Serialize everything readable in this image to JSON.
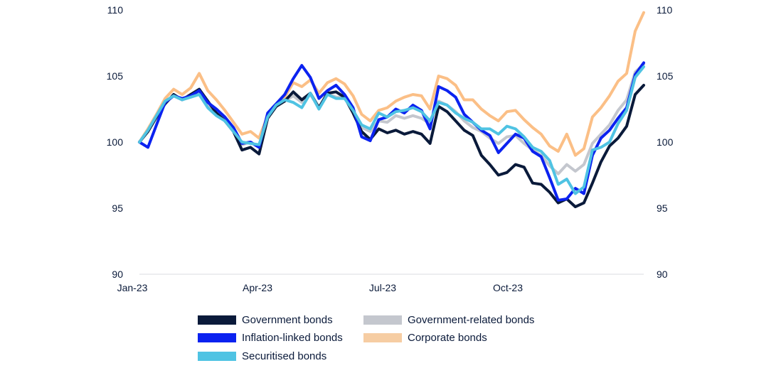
{
  "chart_data": {
    "type": "line",
    "title": "",
    "xlabel": "",
    "ylabel": "",
    "ylim": [
      90,
      110
    ],
    "yticks": [
      90,
      95,
      100,
      105,
      110
    ],
    "ytick_labels": [
      "90",
      "95",
      "100",
      "105",
      "110"
    ],
    "y_axis_sides": [
      "left",
      "right"
    ],
    "x_tick_labels": [
      "Jan-23",
      "Apr-23",
      "Jul-23",
      "Oct-23"
    ],
    "x_tick_positions_month_index": [
      0,
      3,
      6,
      9
    ],
    "x_range_months": [
      0,
      11.95
    ],
    "grid": false,
    "baseline_value": 90,
    "legend_placement": "bottom",
    "series": [
      {
        "name": "Government bonds",
        "color": "#0a1a3a",
        "values": [
          100.0,
          100.8,
          101.9,
          102.9,
          103.6,
          103.2,
          103.6,
          104.0,
          103.1,
          102.2,
          101.6,
          100.8,
          99.4,
          99.6,
          99.1,
          101.8,
          102.7,
          103.1,
          103.8,
          103.2,
          103.7,
          102.6,
          103.7,
          103.8,
          103.4,
          102.2,
          100.8,
          100.2,
          101.0,
          100.7,
          100.9,
          100.6,
          100.8,
          100.6,
          99.9,
          102.7,
          102.3,
          101.6,
          100.9,
          100.5,
          99.0,
          98.3,
          97.5,
          97.7,
          98.3,
          98.1,
          96.9,
          96.8,
          96.2,
          95.4,
          95.7,
          95.1,
          95.4,
          96.9,
          98.5,
          99.7,
          100.3,
          101.2,
          103.6,
          104.3
        ]
      },
      {
        "name": "Inflation-linked bonds",
        "color": "#0b22f0",
        "values": [
          100.0,
          99.6,
          101.3,
          103.0,
          103.5,
          103.3,
          103.5,
          103.9,
          103.0,
          102.5,
          101.9,
          101.1,
          99.9,
          100.0,
          99.6,
          102.2,
          102.9,
          103.6,
          104.8,
          105.8,
          104.9,
          103.3,
          103.9,
          104.3,
          103.6,
          102.6,
          100.4,
          100.1,
          101.7,
          101.9,
          102.5,
          102.2,
          102.8,
          102.4,
          101.0,
          104.2,
          103.9,
          103.4,
          102.1,
          101.5,
          100.9,
          100.5,
          99.2,
          99.9,
          100.6,
          100.3,
          99.3,
          98.9,
          97.3,
          95.6,
          95.7,
          96.5,
          96.1,
          99.0,
          100.3,
          100.9,
          101.8,
          102.6,
          105.1,
          106.0
        ]
      },
      {
        "name": "Securitised bonds",
        "color": "#4fc3e3",
        "values": [
          100.0,
          100.9,
          102.0,
          103.1,
          103.5,
          103.2,
          103.4,
          103.6,
          102.6,
          102.0,
          101.6,
          100.8,
          100.0,
          99.9,
          99.8,
          101.9,
          102.8,
          103.2,
          103.0,
          102.6,
          103.7,
          102.5,
          103.6,
          103.3,
          103.3,
          102.4,
          101.3,
          101.0,
          102.2,
          101.9,
          102.3,
          102.4,
          102.6,
          102.3,
          101.6,
          103.0,
          102.8,
          102.2,
          101.8,
          101.5,
          101.0,
          101.0,
          100.6,
          101.2,
          101.0,
          100.4,
          99.6,
          99.3,
          98.6,
          96.8,
          97.2,
          96.1,
          96.6,
          99.4,
          99.6,
          100.0,
          101.4,
          102.4,
          104.9,
          105.7
        ]
      },
      {
        "name": "Government-related bonds",
        "color": "#c4c7ce",
        "values": [
          100.0,
          100.9,
          102.0,
          103.0,
          103.5,
          103.2,
          103.5,
          103.8,
          102.8,
          102.1,
          101.7,
          100.9,
          99.8,
          100.0,
          99.6,
          101.9,
          102.8,
          103.1,
          103.5,
          103.0,
          103.6,
          102.6,
          103.7,
          103.4,
          103.4,
          102.3,
          101.1,
          100.8,
          101.6,
          101.5,
          102.0,
          101.8,
          102.0,
          101.8,
          101.4,
          103.1,
          102.8,
          102.3,
          101.6,
          101.1,
          100.8,
          100.3,
          99.9,
          100.4,
          100.5,
          99.9,
          99.4,
          99.0,
          98.2,
          97.6,
          98.3,
          97.8,
          98.3,
          99.9,
          100.6,
          101.3,
          102.4,
          103.2,
          105.3,
          105.9
        ]
      },
      {
        "name": "Corporate bonds",
        "color": "#fbbf86",
        "values": [
          100.0,
          101.0,
          102.1,
          103.3,
          104.0,
          103.6,
          104.1,
          105.2,
          103.9,
          103.2,
          102.4,
          101.5,
          100.6,
          100.8,
          100.3,
          102.0,
          102.8,
          103.4,
          104.5,
          104.2,
          104.7,
          103.7,
          104.5,
          104.8,
          104.4,
          103.5,
          102.1,
          101.6,
          102.4,
          102.6,
          103.1,
          103.4,
          103.6,
          103.5,
          102.5,
          105.0,
          104.8,
          104.3,
          103.2,
          103.2,
          102.5,
          102.0,
          101.6,
          102.3,
          102.4,
          101.7,
          101.1,
          100.6,
          99.7,
          99.3,
          100.6,
          99.0,
          99.5,
          101.9,
          102.6,
          103.5,
          104.6,
          105.2,
          108.4,
          109.8
        ]
      }
    ]
  },
  "legend": {
    "items": [
      {
        "label": "Government bonds",
        "color": "#0a1a3a"
      },
      {
        "label": "Government-related bonds",
        "color": "#c4c7ce"
      },
      {
        "label": "Inflation-linked bonds",
        "color": "#0b22f0"
      },
      {
        "label": "Corporate bonds",
        "color": "#f6cda3"
      },
      {
        "label": "Securitised bonds",
        "color": "#4fc3e3"
      }
    ]
  }
}
